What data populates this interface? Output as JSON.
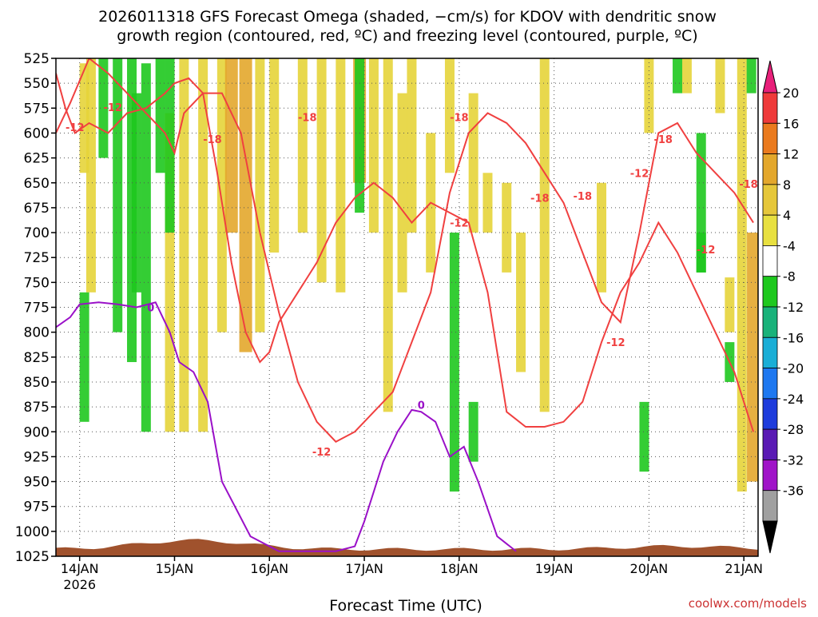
{
  "chart_data": {
    "type": "heatmap",
    "title_lines": [
      "2026011318 GFS Forecast Omega (shaded, −cm/s) for KDOV with dendritic snow",
      "growth region (contoured, red, ºC) and freezing level (contoured, purple, ºC)"
    ],
    "xlabel": "Forecast Time (UTC)",
    "credit": "coolwx.com/models",
    "x_ticks": [
      "14JAN",
      "15JAN",
      "16JAN",
      "17JAN",
      "18JAN",
      "19JAN",
      "20JAN",
      "21JAN"
    ],
    "x_year": "2026",
    "xlim_days": [
      -0.25,
      7.15
    ],
    "y_ticks": [
      525,
      550,
      575,
      600,
      625,
      650,
      675,
      700,
      725,
      750,
      775,
      800,
      825,
      850,
      875,
      900,
      925,
      950,
      975,
      1000,
      1025
    ],
    "ylim": [
      525,
      1025
    ],
    "colorbar": {
      "labels": [
        20,
        16,
        12,
        8,
        4,
        -4,
        -8,
        -12,
        -16,
        -20,
        -24,
        -28,
        -32,
        -36
      ],
      "colors": [
        "#ef3a3a",
        "#ea7a1e",
        "#e3a72c",
        "#e6c73a",
        "#e8e040",
        "#ffffff",
        "#1ec81e",
        "#19b27a",
        "#1aaed6",
        "#1e78f0",
        "#1e3cdc",
        "#5a1ab4",
        "#a014c8",
        "#a0a0a0",
        "#000000"
      ],
      "top_color": "#e8207a"
    },
    "shading": [
      {
        "t": 0.05,
        "p1": 530,
        "p2": 640,
        "level": 4
      },
      {
        "t": 0.12,
        "p1": 525,
        "p2": 760,
        "level": 4
      },
      {
        "t": 0.25,
        "p1": 525,
        "p2": 625,
        "level": -4
      },
      {
        "t": 0.4,
        "p1": 525,
        "p2": 800,
        "level": -4
      },
      {
        "t": 0.55,
        "p1": 525,
        "p2": 830,
        "level": -8
      },
      {
        "t": 0.7,
        "p1": 530,
        "p2": 900,
        "level": -4
      },
      {
        "t": 0.85,
        "p1": 525,
        "p2": 640,
        "level": -4
      },
      {
        "t": 0.95,
        "p1": 580,
        "p2": 900,
        "level": 4
      },
      {
        "t": 1.1,
        "p1": 525,
        "p2": 900,
        "level": 4
      },
      {
        "t": 1.3,
        "p1": 525,
        "p2": 900,
        "level": 4
      },
      {
        "t": 1.5,
        "p1": 525,
        "p2": 800,
        "level": 4
      },
      {
        "t": 1.6,
        "p1": 525,
        "p2": 700,
        "level": 8
      },
      {
        "t": 1.75,
        "p1": 525,
        "p2": 820,
        "level": 8
      },
      {
        "t": 1.9,
        "p1": 525,
        "p2": 800,
        "level": 4
      },
      {
        "t": 2.05,
        "p1": 525,
        "p2": 720,
        "level": 4
      },
      {
        "t": 2.35,
        "p1": 525,
        "p2": 700,
        "level": 4
      },
      {
        "t": 2.55,
        "p1": 525,
        "p2": 750,
        "level": 4
      },
      {
        "t": 2.75,
        "p1": 525,
        "p2": 760,
        "level": 4
      },
      {
        "t": 2.95,
        "p1": 525,
        "p2": 650,
        "level": 8
      },
      {
        "t": 3.1,
        "p1": 525,
        "p2": 700,
        "level": 4
      },
      {
        "t": 3.25,
        "p1": 525,
        "p2": 880,
        "level": 4
      },
      {
        "t": 3.4,
        "p1": 560,
        "p2": 760,
        "level": 4
      },
      {
        "t": 3.5,
        "p1": 525,
        "p2": 700,
        "level": 4
      },
      {
        "t": 3.7,
        "p1": 600,
        "p2": 740,
        "level": 4
      },
      {
        "t": 3.9,
        "p1": 525,
        "p2": 640,
        "level": 4
      },
      {
        "t": 4.15,
        "p1": 560,
        "p2": 700,
        "level": 4
      },
      {
        "t": 4.3,
        "p1": 640,
        "p2": 700,
        "level": 4
      },
      {
        "t": 4.5,
        "p1": 650,
        "p2": 740,
        "level": 4
      },
      {
        "t": 4.65,
        "p1": 700,
        "p2": 840,
        "level": 4
      },
      {
        "t": 4.9,
        "p1": 525,
        "p2": 880,
        "level": 4
      },
      {
        "t": 5.5,
        "p1": 650,
        "p2": 760,
        "level": 4
      },
      {
        "t": 6.0,
        "p1": 525,
        "p2": 600,
        "level": 4
      },
      {
        "t": 6.4,
        "p1": 525,
        "p2": 560,
        "level": 4
      },
      {
        "t": 6.75,
        "p1": 525,
        "p2": 580,
        "level": 4
      },
      {
        "t": 6.85,
        "p1": 745,
        "p2": 800,
        "level": 4
      },
      {
        "t": 6.98,
        "p1": 525,
        "p2": 960,
        "level": 4
      },
      {
        "t": 7.1,
        "p1": 700,
        "p2": 950,
        "level": 8
      },
      {
        "t": 0.05,
        "p1": 760,
        "p2": 890,
        "level": -4
      },
      {
        "t": 0.6,
        "p1": 560,
        "p2": 760,
        "level": -8
      },
      {
        "t": 0.95,
        "p1": 525,
        "p2": 700,
        "level": -4
      },
      {
        "t": 2.95,
        "p1": 525,
        "p2": 680,
        "level": -8
      },
      {
        "t": 3.95,
        "p1": 700,
        "p2": 960,
        "level": -4
      },
      {
        "t": 4.15,
        "p1": 870,
        "p2": 930,
        "level": -4
      },
      {
        "t": 6.55,
        "p1": 600,
        "p2": 740,
        "level": -4
      },
      {
        "t": 6.55,
        "p1": 700,
        "p2": 740,
        "level": -8
      },
      {
        "t": 5.95,
        "p1": 870,
        "p2": 940,
        "level": -4
      },
      {
        "t": 6.3,
        "p1": 525,
        "p2": 560,
        "level": -4
      },
      {
        "t": 6.85,
        "p1": 810,
        "p2": 850,
        "level": -4
      },
      {
        "t": 7.08,
        "p1": 525,
        "p2": 560,
        "level": -8
      }
    ],
    "dgz_warm_boundary": {
      "level": "-12",
      "t": [
        -0.25,
        -0.15,
        -0.05,
        0.1,
        0.3,
        0.5,
        0.7,
        0.9,
        1.0,
        1.15,
        1.3,
        1.45,
        1.6,
        1.75,
        1.9,
        2.0,
        2.1,
        2.3,
        2.5,
        2.7,
        2.9,
        3.1,
        3.3,
        3.5,
        3.7,
        3.9,
        4.1,
        4.3,
        4.5,
        4.7,
        4.9,
        5.1,
        5.3,
        5.5,
        5.7,
        5.9,
        6.1,
        6.3,
        6.5,
        6.7,
        6.9,
        7.1
      ],
      "p": [
        540,
        575,
        600,
        590,
        600,
        580,
        575,
        560,
        550,
        545,
        560,
        640,
        730,
        800,
        830,
        820,
        790,
        760,
        730,
        690,
        665,
        650,
        665,
        690,
        670,
        680,
        690,
        760,
        880,
        895,
        895,
        890,
        870,
        810,
        760,
        730,
        690,
        720,
        760,
        800,
        840,
        900
      ]
    },
    "dgz_cold_boundary": {
      "level": "-18",
      "t": [
        -0.25,
        -0.1,
        0.1,
        0.3,
        0.5,
        0.7,
        0.9,
        1.0,
        1.1,
        1.3,
        1.5,
        1.7,
        1.8,
        1.9,
        2.1,
        2.3,
        2.5,
        2.7,
        2.9,
        3.1,
        3.3,
        3.5,
        3.7,
        3.9,
        4.1,
        4.3,
        4.5,
        4.7,
        4.9,
        5.1,
        5.3,
        5.5,
        5.7,
        5.9,
        6.1,
        6.3,
        6.5,
        6.7,
        6.9,
        7.1
      ],
      "p": [
        600,
        570,
        525,
        540,
        560,
        580,
        600,
        620,
        580,
        560,
        560,
        600,
        650,
        700,
        780,
        850,
        890,
        910,
        900,
        880,
        860,
        810,
        760,
        660,
        600,
        580,
        590,
        610,
        640,
        670,
        720,
        770,
        790,
        700,
        600,
        590,
        620,
        640,
        660,
        690
      ]
    },
    "freezing_level": {
      "level": "0",
      "t": [
        -0.25,
        -0.1,
        0.0,
        0.2,
        0.4,
        0.6,
        0.8,
        0.95,
        1.05,
        1.2,
        1.35,
        1.5,
        1.8,
        2.1,
        2.4,
        2.7,
        2.9,
        3.0,
        3.1,
        3.2,
        3.35,
        3.5,
        3.6,
        3.75,
        3.9,
        4.05,
        4.2,
        4.4,
        4.6
      ],
      "p": [
        795,
        785,
        772,
        770,
        772,
        775,
        770,
        800,
        830,
        840,
        870,
        950,
        1005,
        1020,
        1020,
        1020,
        1015,
        990,
        960,
        930,
        900,
        878,
        880,
        890,
        925,
        915,
        950,
        1005,
        1020
      ]
    },
    "labels": [
      {
        "text": "-12",
        "t": 0.35,
        "p": 574
      },
      {
        "text": "-12",
        "t": -0.05,
        "p": 594
      },
      {
        "text": "-18",
        "t": 1.4,
        "p": 606
      },
      {
        "text": "-18",
        "t": 2.4,
        "p": 584
      },
      {
        "text": "-18",
        "t": 4.0,
        "p": 584
      },
      {
        "text": "-12",
        "t": 4.0,
        "p": 690
      },
      {
        "text": "-18",
        "t": 4.85,
        "p": 665
      },
      {
        "text": "-18",
        "t": 5.3,
        "p": 663
      },
      {
        "text": "-12",
        "t": 5.65,
        "p": 810
      },
      {
        "text": "-12",
        "t": 5.9,
        "p": 640
      },
      {
        "text": "-18",
        "t": 6.15,
        "p": 606
      },
      {
        "text": "-12",
        "t": 6.6,
        "p": 717
      },
      {
        "text": "-18",
        "t": 7.05,
        "p": 651
      },
      {
        "text": "-12",
        "t": 2.55,
        "p": 920
      },
      {
        "text": "0",
        "t": 0.75,
        "p": 775
      },
      {
        "text": "0",
        "t": 3.6,
        "p": 873
      }
    ],
    "terrain_color": "#a0522d",
    "dgz_color": "#f04040",
    "freezing_color": "#9a10c8"
  }
}
